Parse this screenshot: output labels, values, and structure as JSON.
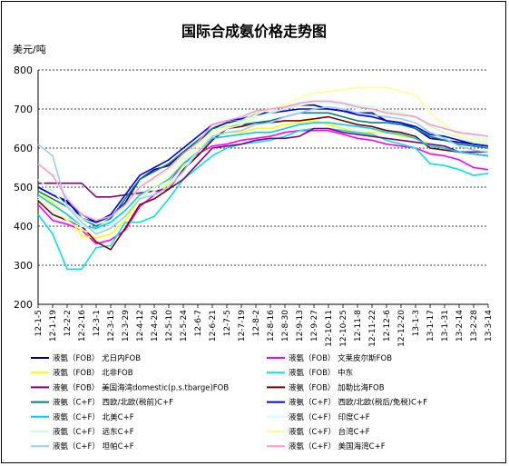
{
  "chart_data": {
    "type": "line",
    "title": "国际合成氨价格走势图",
    "ylabel": "美元/吨",
    "ylim": [
      200,
      800
    ],
    "yticks": [
      200,
      300,
      400,
      500,
      600,
      700,
      800
    ],
    "grid": "horizontal-dashed",
    "legend_position": "bottom",
    "x": [
      "12-1-5",
      "12-1-19",
      "12-2-2",
      "12-2-16",
      "12-3-1",
      "12-3-15",
      "12-3-29",
      "12-4-12",
      "12-4-26",
      "12-5-10",
      "12-5-24",
      "12-6-7",
      "12-6-21",
      "12-7-5",
      "12-7-19",
      "12-8-2",
      "12-8-16",
      "12-8-30",
      "12-9-13",
      "12-9-27",
      "12-10-11",
      "12-10-25",
      "12-11-8",
      "12-11-22",
      "12-12-6",
      "12-12-20",
      "13-1-3",
      "13-1-17",
      "13-1-31",
      "13-2-14",
      "13-2-28",
      "13-3-14"
    ],
    "series": [
      {
        "name": "液氨（FOB） 尤日内FOB",
        "color": "#000080",
        "values": [
          500,
          480,
          465,
          420,
          410,
          425,
          460,
          520,
          545,
          555,
          590,
          615,
          650,
          665,
          670,
          690,
          690,
          700,
          710,
          710,
          700,
          695,
          690,
          690,
          670,
          665,
          650,
          625,
          620,
          615,
          610,
          605
        ]
      },
      {
        "name": "液氨（FOB） 文莱皮尔斯FOB",
        "color": "#ff00ff",
        "values": [
          455,
          415,
          405,
          390,
          355,
          365,
          390,
          450,
          480,
          510,
          560,
          585,
          605,
          610,
          620,
          625,
          630,
          640,
          645,
          645,
          645,
          635,
          625,
          620,
          610,
          605,
          600,
          585,
          580,
          570,
          550,
          545
        ]
      },
      {
        "name": "液氨（FOB） 北非FOB",
        "color": "#ffff00",
        "values": [
          490,
          460,
          430,
          375,
          370,
          380,
          415,
          470,
          490,
          505,
          555,
          580,
          625,
          640,
          640,
          650,
          650,
          660,
          665,
          670,
          660,
          650,
          640,
          640,
          640,
          630,
          625,
          610,
          600,
          590,
          585,
          580
        ]
      },
      {
        "name": "液氨（FOB） 中东",
        "color": "#00e5e5",
        "values": [
          430,
          380,
          290,
          290,
          345,
          350,
          410,
          410,
          425,
          470,
          520,
          550,
          580,
          600,
          610,
          615,
          620,
          630,
          645,
          650,
          650,
          645,
          640,
          635,
          620,
          610,
          600,
          560,
          555,
          545,
          530,
          535
        ]
      },
      {
        "name": "液氨（FOB） 美国海湾domestic(p.s.tbarge)FOB",
        "color": "#800080",
        "values": [
          510,
          510,
          510,
          510,
          475,
          475,
          480,
          485,
          490,
          495,
          520,
          560,
          600,
          605,
          610,
          620,
          625,
          625,
          630,
          650,
          650,
          640,
          635,
          630,
          625,
          620,
          615,
          610,
          605,
          590,
          590,
          590
        ]
      },
      {
        "name": "液氨（FOB） 加勒比海FOB",
        "color": "#800000",
        "values": [
          465,
          430,
          415,
          400,
          360,
          340,
          395,
          455,
          470,
          495,
          545,
          580,
          620,
          650,
          655,
          665,
          665,
          670,
          670,
          675,
          680,
          670,
          660,
          655,
          645,
          640,
          630,
          600,
          595,
          590,
          585,
          580
        ]
      },
      {
        "name": "液氨（C+F） 西欧/北欧(税前)C+F",
        "color": "#008080",
        "values": [
          490,
          470,
          450,
          420,
          400,
          420,
          470,
          520,
          540,
          560,
          590,
          620,
          650,
          655,
          660,
          665,
          670,
          680,
          690,
          690,
          690,
          680,
          670,
          665,
          665,
          660,
          650,
          630,
          620,
          610,
          605,
          600
        ]
      },
      {
        "name": "液氨（C+F） 西欧/北欧(税后/免税)C+F",
        "color": "#0000ff",
        "values": [
          500,
          480,
          460,
          430,
          410,
          430,
          480,
          530,
          550,
          570,
          600,
          630,
          660,
          670,
          675,
          685,
          690,
          695,
          700,
          700,
          700,
          695,
          685,
          680,
          670,
          665,
          655,
          635,
          630,
          620,
          610,
          605
        ]
      },
      {
        "name": "液氨（C+F） 北美C+F",
        "color": "#00ccff",
        "values": [
          480,
          455,
          430,
          400,
          395,
          410,
          440,
          480,
          500,
          520,
          560,
          590,
          625,
          630,
          635,
          640,
          640,
          650,
          660,
          665,
          665,
          660,
          655,
          650,
          640,
          635,
          625,
          605,
          600,
          590,
          585,
          580
        ]
      },
      {
        "name": "液氨（C+F） 印度C+F",
        "color": "#ccffff",
        "values": [
          470,
          440,
          420,
          400,
          390,
          400,
          430,
          470,
          490,
          510,
          550,
          590,
          630,
          650,
          660,
          680,
          690,
          700,
          710,
          715,
          715,
          710,
          700,
          695,
          690,
          685,
          680,
          660,
          650,
          640,
          630,
          620
        ]
      },
      {
        "name": "液氨（C+F） 远东C+F",
        "color": "#ccffcc",
        "values": [
          520,
          490,
          450,
          420,
          405,
          415,
          450,
          500,
          520,
          545,
          575,
          610,
          645,
          660,
          670,
          690,
          700,
          705,
          715,
          720,
          720,
          715,
          710,
          705,
          695,
          690,
          680,
          655,
          640,
          625,
          615,
          610
        ]
      },
      {
        "name": "液氨（C+F） 台湾C+F",
        "color": "#ffff99",
        "values": [
          475,
          445,
          415,
          390,
          380,
          395,
          430,
          475,
          500,
          525,
          565,
          600,
          640,
          655,
          665,
          685,
          700,
          710,
          730,
          740,
          745,
          750,
          755,
          755,
          755,
          745,
          735,
          690,
          660,
          630,
          620,
          615
        ]
      },
      {
        "name": "液氨（C+F） 坦帕C+F",
        "color": "#99ccff",
        "values": [
          610,
          580,
          450,
          410,
          380,
          395,
          425,
          470,
          480,
          500,
          540,
          590,
          630,
          640,
          645,
          660,
          665,
          680,
          690,
          700,
          705,
          700,
          690,
          685,
          680,
          675,
          665,
          640,
          625,
          605,
          595,
          590
        ]
      },
      {
        "name": "液氨（C+F） 美国海湾C+F",
        "color": "#ff99cc",
        "values": [
          560,
          530,
          470,
          430,
          415,
          425,
          455,
          500,
          525,
          550,
          585,
          615,
          660,
          670,
          680,
          695,
          700,
          705,
          715,
          720,
          720,
          715,
          705,
          700,
          690,
          685,
          680,
          660,
          650,
          640,
          635,
          630
        ]
      }
    ]
  }
}
